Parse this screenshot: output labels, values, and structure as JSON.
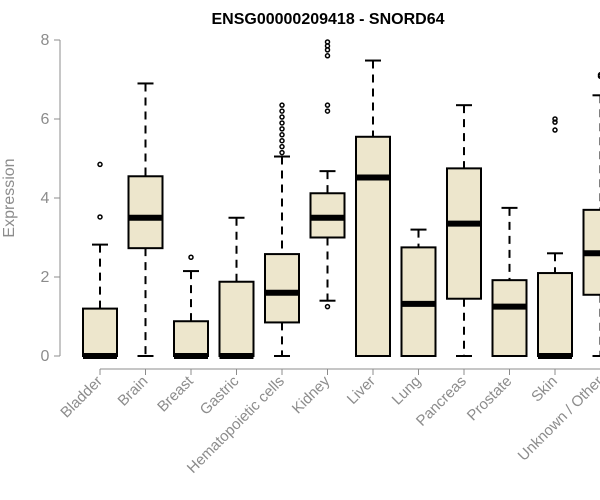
{
  "chart_data": {
    "type": "box",
    "title": "ENSG00000209418 - SNORD64",
    "xlabel": "",
    "ylabel": "Expression",
    "ylim": [
      0,
      8
    ],
    "yticks": [
      "0",
      "2",
      "4",
      "6",
      "8"
    ],
    "grid": false,
    "legend": "none",
    "box_fill": "#ede6cc",
    "categories": [
      "Bladder",
      "Brain",
      "Breast",
      "Gastric",
      "Hematopoietic cells",
      "Kidney",
      "Liver",
      "Lung",
      "Pancreas",
      "Prostate",
      "Skin",
      "Unknown / Other"
    ],
    "series": [
      {
        "category": "Bladder",
        "whisker_low": 0,
        "q1": 0,
        "median": 0,
        "q3": 1.2,
        "whisker_high": 2.82,
        "outliers": [
          3.52,
          4.85
        ]
      },
      {
        "category": "Brain",
        "whisker_low": 0,
        "q1": 2.73,
        "median": 3.5,
        "q3": 4.55,
        "whisker_high": 6.9,
        "outliers": []
      },
      {
        "category": "Breast",
        "whisker_low": 0,
        "q1": 0,
        "median": 0,
        "q3": 0.88,
        "whisker_high": 2.15,
        "outliers": [
          2.5
        ]
      },
      {
        "category": "Gastric",
        "whisker_low": 0,
        "q1": 0,
        "median": 0,
        "q3": 1.88,
        "whisker_high": 3.5,
        "outliers": []
      },
      {
        "category": "Hematopoietic cells",
        "whisker_low": 0,
        "q1": 0.85,
        "median": 1.6,
        "q3": 2.58,
        "whisker_high": 5.05,
        "outliers": [
          5.15,
          5.3,
          5.45,
          5.6,
          5.75,
          5.9,
          6.05,
          6.2,
          6.35
        ]
      },
      {
        "category": "Kidney",
        "whisker_low": 1.4,
        "q1": 3.0,
        "median": 3.5,
        "q3": 4.12,
        "whisker_high": 4.68,
        "outliers": [
          1.25,
          6.2,
          6.35,
          7.6,
          7.75,
          7.85,
          7.95
        ]
      },
      {
        "category": "Liver",
        "whisker_low": 0,
        "q1": 0,
        "median": 4.52,
        "q3": 5.55,
        "whisker_high": 7.48,
        "outliers": []
      },
      {
        "category": "Lung",
        "whisker_low": 0,
        "q1": 0,
        "median": 1.32,
        "q3": 2.75,
        "whisker_high": 3.2,
        "outliers": []
      },
      {
        "category": "Pancreas",
        "whisker_low": 0,
        "q1": 1.45,
        "median": 3.35,
        "q3": 4.75,
        "whisker_high": 6.35,
        "outliers": []
      },
      {
        "category": "Prostate",
        "whisker_low": 0,
        "q1": 0,
        "median": 1.25,
        "q3": 1.92,
        "whisker_high": 3.75,
        "outliers": []
      },
      {
        "category": "Skin",
        "whisker_low": 0,
        "q1": 0,
        "median": 0,
        "q3": 2.1,
        "whisker_high": 2.6,
        "outliers": [
          5.72,
          5.92,
          6.0
        ]
      },
      {
        "category": "Unknown / Other",
        "whisker_low": 0,
        "q1": 1.55,
        "median": 2.6,
        "q3": 3.7,
        "whisker_high": 6.6,
        "outliers": [
          7.08,
          7.12
        ]
      }
    ]
  }
}
